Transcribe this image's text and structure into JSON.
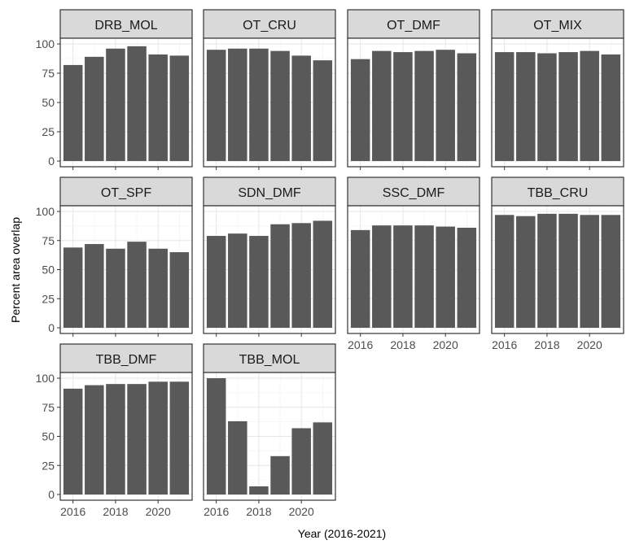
{
  "chart_data": {
    "type": "bar",
    "layout": "facet_wrap",
    "xlabel": "Year (2016-2021)",
    "ylabel": "Percent area overlap",
    "x": [
      2016,
      2017,
      2018,
      2019,
      2020,
      2021
    ],
    "x_tick_labels": [
      "2016",
      "2018",
      "2020"
    ],
    "ylim": [
      0,
      100
    ],
    "y_ticks": [
      0,
      25,
      50,
      75,
      100
    ],
    "bar_color": "#595959",
    "grid": true,
    "panels": [
      {
        "name": "DRB_MOL",
        "values": [
          82,
          89,
          96,
          98,
          91,
          90
        ]
      },
      {
        "name": "OT_CRU",
        "values": [
          95,
          96,
          96,
          94,
          90,
          86
        ]
      },
      {
        "name": "OT_DMF",
        "values": [
          87,
          94,
          93,
          94,
          95,
          92
        ]
      },
      {
        "name": "OT_MIX",
        "values": [
          93,
          93,
          92,
          93,
          94,
          91
        ]
      },
      {
        "name": "OT_SPF",
        "values": [
          69,
          72,
          68,
          74,
          68,
          65
        ]
      },
      {
        "name": "SDN_DMF",
        "values": [
          79,
          81,
          79,
          89,
          90,
          92
        ]
      },
      {
        "name": "SSC_DMF",
        "values": [
          84,
          88,
          88,
          88,
          87,
          86
        ]
      },
      {
        "name": "TBB_CRU",
        "values": [
          97,
          96,
          98,
          98,
          97,
          97
        ]
      },
      {
        "name": "TBB_DMF",
        "values": [
          91,
          94,
          95,
          95,
          97,
          97
        ]
      },
      {
        "name": "TBB_MOL",
        "values": [
          100,
          63,
          7,
          33,
          57,
          62
        ]
      }
    ]
  }
}
